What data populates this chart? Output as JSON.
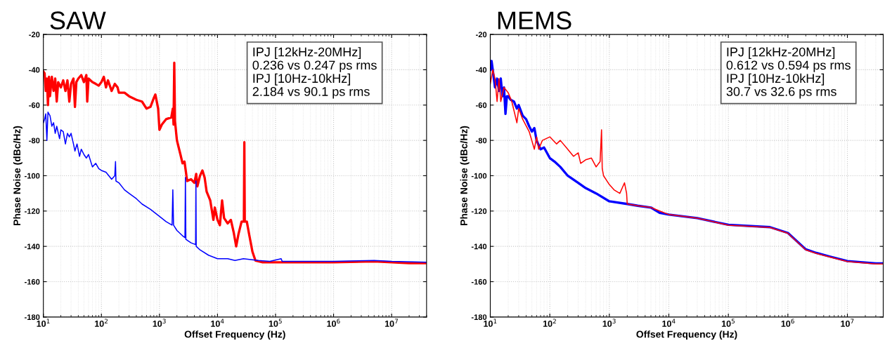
{
  "chart_data": [
    {
      "type": "line",
      "title": "SAW",
      "xlabel": "Offset Frequency (Hz)",
      "ylabel": "Phase Noise (dBc/Hz)",
      "log": "x",
      "grid": true,
      "xlim": [
        10,
        40000000
      ],
      "xticks": [
        {
          "value": 10,
          "label": "10$^{1}$"
        },
        {
          "value": 100,
          "label": "10$^{2}$"
        },
        {
          "value": 1000,
          "label": "10$^{3}$"
        },
        {
          "value": 10000,
          "label": "10$^{4}$"
        },
        {
          "value": 100000,
          "label": "10$^{5}$"
        },
        {
          "value": 1000000,
          "label": "10$^{6}$"
        },
        {
          "value": 10000000,
          "label": "10$^{7}$"
        }
      ],
      "ylim": [
        -180,
        -20
      ],
      "yticks": [
        -180,
        -160,
        -140,
        -120,
        -100,
        -80,
        -60,
        -40,
        -20
      ],
      "annotations": [
        "IPJ [12kHz-20MHz]",
        "0.236 vs 0.247 ps rms",
        "IPJ [10Hz-10kHz]",
        "2.184 vs 90.1 ps rms"
      ],
      "series": [
        {
          "color": "#ff0000",
          "x": [
            10,
            10.5,
            11,
            11.5,
            12,
            12.5,
            13,
            14,
            15,
            16,
            17,
            18,
            20,
            22,
            24,
            26,
            28,
            30,
            33,
            35,
            37,
            40,
            45,
            50,
            55,
            57,
            60,
            70,
            80,
            90,
            100,
            110,
            120,
            130,
            150,
            170,
            190,
            200,
            250,
            300,
            400,
            500,
            600,
            700,
            800,
            850,
            950,
            1000,
            1100,
            1300,
            1600,
            1700,
            1750,
            1800,
            1850,
            2000,
            2300,
            2500,
            2700,
            3000,
            3500,
            4000,
            4300,
            4500,
            5000,
            5500,
            6000,
            6500,
            7500,
            8500,
            9000,
            10000,
            11000,
            12000,
            13000,
            15000,
            17000,
            19000,
            21000,
            23000,
            26000,
            28500,
            29000,
            29500,
            32000,
            35000,
            40000,
            45000,
            60000,
            100000,
            200000,
            1000000,
            5000000,
            10000000,
            20000000,
            40000000
          ],
          "values": [
            -41,
            -42,
            -52,
            -45,
            -60,
            -44,
            -55,
            -44,
            -52,
            -45,
            -58,
            -47,
            -50,
            -46,
            -52,
            -46,
            -58,
            -48,
            -45,
            -61,
            -47,
            -45,
            -43,
            -47,
            -43,
            -58,
            -45,
            -47,
            -48,
            -49,
            -47,
            -44,
            -50,
            -46,
            -52,
            -48,
            -50,
            -53,
            -53,
            -55,
            -57,
            -58,
            -62,
            -61,
            -56,
            -54,
            -62,
            -74,
            -71,
            -68,
            -67,
            -62,
            -71,
            -36,
            -69,
            -80,
            -88,
            -93,
            -92,
            -103,
            -102,
            -104,
            -99,
            -106,
            -100,
            -97,
            -101,
            -109,
            -114,
            -125,
            -118,
            -125,
            -128,
            -114,
            -124,
            -127,
            -125,
            -132,
            -140,
            -133,
            -126,
            -126,
            -81,
            -126,
            -126,
            -133,
            -143,
            -148,
            -149,
            -149,
            -149,
            -149,
            -148.5,
            -149,
            -149.5,
            -149.5
          ]
        },
        {
          "color": "#0000ff",
          "x": [
            10,
            10.5,
            11,
            11.5,
            12,
            13,
            14,
            15,
            16,
            17,
            19,
            20,
            22,
            24,
            26,
            28,
            30,
            33,
            35,
            38,
            42,
            45,
            50,
            55,
            60,
            70,
            80,
            90,
            100,
            120,
            150,
            170,
            175,
            178,
            200,
            250,
            300,
            400,
            500,
            700,
            1000,
            1300,
            1650,
            1700,
            1750,
            2000,
            2500,
            2750,
            2800,
            2850,
            3500,
            4200,
            4250,
            4300,
            5000,
            7000,
            10000,
            15000,
            20000,
            28000,
            50000,
            80000,
            125000,
            130000,
            300000,
            1000000,
            5000000,
            10000000,
            40000000
          ],
          "values": [
            -70,
            -68,
            -65,
            -80,
            -64,
            -66,
            -72,
            -70,
            -76,
            -72,
            -79,
            -74,
            -75,
            -82,
            -76,
            -78,
            -76,
            -82,
            -86,
            -82,
            -89,
            -85,
            -88,
            -90,
            -88,
            -95,
            -93,
            -96,
            -97,
            -98,
            -102,
            -100,
            -92,
            -103,
            -104,
            -108,
            -110,
            -113,
            -116,
            -119,
            -123,
            -126,
            -128,
            -108,
            -128,
            -131,
            -134,
            -135,
            -101,
            -136,
            -138,
            -139,
            -103,
            -140,
            -142,
            -145,
            -147,
            -147,
            -148,
            -147,
            -148,
            -148.5,
            -147,
            -148.5,
            -148.5,
            -148.5,
            -148,
            -148.5,
            -149
          ]
        }
      ]
    },
    {
      "type": "line",
      "title": "MEMS",
      "xlabel": "Offset Frequency (Hz)",
      "ylabel": "Phase Noise (dBc/Hz)",
      "log": "x",
      "grid": true,
      "xlim": [
        10,
        40000000
      ],
      "xticks": [
        {
          "value": 10,
          "label": "10$^{1}$"
        },
        {
          "value": 100,
          "label": "10$^{2}$"
        },
        {
          "value": 1000,
          "label": "10$^{3}$"
        },
        {
          "value": 10000,
          "label": "10$^{4}$"
        },
        {
          "value": 100000,
          "label": "10$^{5}$"
        },
        {
          "value": 1000000,
          "label": "10$^{6}$"
        },
        {
          "value": 10000000,
          "label": "10$^{7}$"
        }
      ],
      "ylim": [
        -180,
        -20
      ],
      "yticks": [
        -180,
        -160,
        -140,
        -120,
        -100,
        -80,
        -60,
        -40,
        -20
      ],
      "annotations": [
        "IPJ [12kHz-20MHz]",
        "0.612 vs 0.594 ps rms",
        "IPJ [10Hz-10kHz]",
        "30.7 vs 32.6 ps rms"
      ],
      "series": [
        {
          "color": "#0000ff",
          "x": [
            10,
            10.5,
            11,
            12,
            13,
            14,
            15,
            16,
            17,
            18,
            19,
            20,
            22,
            25,
            28,
            30,
            35,
            40,
            45,
            50,
            55,
            60,
            70,
            80,
            100,
            120,
            150,
            200,
            300,
            400,
            600,
            1000,
            2000,
            3000,
            5000,
            7000,
            10000,
            30000,
            100000,
            500000,
            1000000,
            2000000,
            3000000,
            5000000,
            10000000,
            30000000,
            40000000
          ],
          "values": [
            -40,
            -35,
            -40,
            -50,
            -45,
            -52,
            -45,
            -55,
            -50,
            -65,
            -55,
            -55,
            -57,
            -58,
            -62,
            -60,
            -66,
            -68,
            -72,
            -75,
            -73,
            -80,
            -85,
            -84,
            -90,
            -92,
            -95,
            -100,
            -104,
            -107,
            -110,
            -114.5,
            -116,
            -117,
            -118,
            -121,
            -122,
            -124,
            -127.8,
            -129.1,
            -132.4,
            -141.7,
            -143.7,
            -145.7,
            -148.3,
            -149.6,
            -149.6
          ]
        },
        {
          "color": "#ff0000",
          "x": [
            10,
            11,
            12,
            13,
            14,
            15,
            17,
            20,
            23,
            28,
            30,
            35,
            45,
            55,
            60,
            65,
            75,
            100,
            130,
            150,
            200,
            250,
            300,
            330,
            400,
            500,
            600,
            700,
            740,
            760,
            800,
            1000,
            1200,
            1500,
            1800,
            1950,
            2000,
            3000,
            5000,
            10000,
            30000,
            100000,
            500000,
            1000000,
            2000000,
            3000000,
            5000000,
            10000000,
            30000000,
            40000000
          ],
          "values": [
            -48,
            -40,
            -45,
            -58,
            -45,
            -58,
            -50,
            -53,
            -58,
            -70,
            -62,
            -68,
            -75,
            -85,
            -78,
            -85,
            -80,
            -78,
            -82,
            -80,
            -85,
            -89,
            -87,
            -93,
            -91,
            -90,
            -95,
            -92,
            -74,
            -96,
            -100,
            -105,
            -108,
            -110,
            -104,
            -110,
            -116,
            -117,
            -118,
            -122,
            -124,
            -128,
            -129.3,
            -132.6,
            -142,
            -144,
            -146,
            -148.6,
            -150,
            -150
          ]
        }
      ]
    }
  ]
}
